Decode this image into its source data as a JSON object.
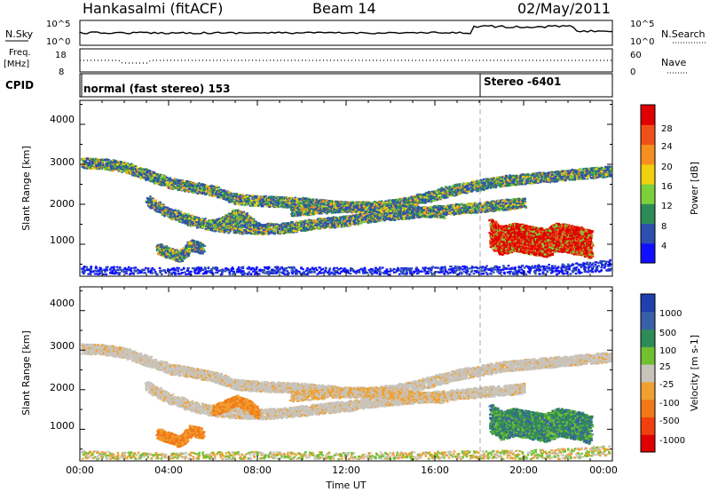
{
  "header": {
    "station": "Hankasalmi (fitACF)",
    "beam": "Beam 14",
    "date": "02/May/2011"
  },
  "sky_panel": {
    "left_label": "N.Sky",
    "right_label": "N.Search",
    "left_ticks": [
      "10^5",
      "10^0"
    ],
    "right_ticks": [
      "10^5",
      "10^0"
    ]
  },
  "freq_panel": {
    "left_label_top": "Freq.",
    "left_label_unit": "[MHz]",
    "right_label": "Nave",
    "left_ticks": [
      "18",
      "8"
    ],
    "right_ticks": [
      "60",
      "0"
    ]
  },
  "cpid_panel": {
    "label": "CPID",
    "mode_1": "normal (fast stereo) 153",
    "mode_2": "Stereo -6401"
  },
  "time_axis": {
    "label": "Time UT",
    "ticks": [
      "00:00",
      "04:00",
      "08:00",
      "12:00",
      "16:00",
      "20:00",
      "00:00"
    ]
  },
  "power_panel": {
    "ylabel": "Slant Range [km]",
    "yticks": [
      "4000",
      "3000",
      "2000",
      "1000"
    ],
    "colorbar_label": "Power [dB]",
    "colorbar_ticks": [
      "28",
      "24",
      "20",
      "16",
      "12",
      "8",
      "4"
    ],
    "colors": [
      "#1010ff",
      "#2d50b0",
      "#2e8b57",
      "#7cd03c",
      "#f0d010",
      "#f59020",
      "#f05018",
      "#e00000"
    ]
  },
  "velocity_panel": {
    "ylabel": "Slant Range [km]",
    "yticks": [
      "4000",
      "3000",
      "2000",
      "1000"
    ],
    "colorbar_label": "Velocity [m s-1]",
    "colorbar_ticks": [
      "1000",
      "500",
      "100",
      "25",
      "-25",
      "-100",
      "-500",
      "-1000"
    ],
    "colors": [
      "#2040b0",
      "#3860a8",
      "#2e8b57",
      "#70c030",
      "#c8c4bc",
      "#f0a030",
      "#f07818",
      "#f04010",
      "#e00000"
    ]
  },
  "chart_data": {
    "type": "heatmap",
    "x_unit": "hours UT",
    "xlim": [
      0,
      24
    ],
    "ylim": [
      200,
      4600
    ],
    "scatter_layers": [
      {
        "name": "upper_layer",
        "points": [
          [
            0,
            3050
          ],
          [
            1,
            3030
          ],
          [
            2,
            2950
          ],
          [
            3,
            2750
          ],
          [
            4,
            2550
          ],
          [
            5,
            2450
          ],
          [
            6,
            2350
          ],
          [
            7,
            2150
          ],
          [
            8,
            2100
          ],
          [
            9,
            2080
          ],
          [
            10,
            2050
          ],
          [
            11,
            2000
          ],
          [
            12,
            1950
          ],
          [
            13,
            1950
          ],
          [
            14,
            2000
          ],
          [
            15,
            2100
          ],
          [
            16,
            2250
          ],
          [
            17,
            2400
          ],
          [
            18,
            2500
          ],
          [
            19,
            2600
          ],
          [
            20,
            2650
          ],
          [
            21,
            2700
          ],
          [
            22,
            2750
          ],
          [
            23,
            2800
          ],
          [
            24,
            2850
          ]
        ]
      },
      {
        "name": "main_arc",
        "points": [
          [
            3,
            2100
          ],
          [
            4,
            1800
          ],
          [
            5,
            1600
          ],
          [
            6,
            1480
          ],
          [
            7,
            1420
          ],
          [
            8,
            1400
          ],
          [
            9,
            1420
          ],
          [
            10,
            1480
          ],
          [
            11,
            1550
          ],
          [
            12,
            1600
          ],
          [
            13,
            1700
          ],
          [
            14,
            1750
          ],
          [
            15,
            1800
          ],
          [
            16,
            1850
          ],
          [
            17,
            1900
          ],
          [
            18,
            1950
          ],
          [
            19,
            2000
          ],
          [
            20,
            2050
          ]
        ]
      },
      {
        "name": "mid_clouds",
        "points": [
          [
            9.5,
            1850
          ],
          [
            10.5,
            1900
          ],
          [
            12,
            1950
          ],
          [
            13.5,
            1950
          ],
          [
            14.5,
            1900
          ],
          [
            15,
            1850
          ],
          [
            16.5,
            1800
          ]
        ]
      },
      {
        "name": "low_patch_1",
        "points": [
          [
            3.5,
            900
          ],
          [
            4,
            800
          ],
          [
            4.5,
            700
          ],
          [
            5,
            1000
          ],
          [
            5.5,
            900
          ]
        ]
      },
      {
        "name": "low_patch_2",
        "points": [
          [
            6,
            1500
          ],
          [
            6.5,
            1600
          ],
          [
            7,
            1750
          ],
          [
            7.5,
            1650
          ],
          [
            8,
            1400
          ]
        ]
      },
      {
        "name": "afternoon",
        "points": [
          [
            18.5,
            1300
          ],
          [
            19,
            1100
          ],
          [
            19.5,
            1200
          ],
          [
            20,
            1150
          ],
          [
            20.5,
            1100
          ],
          [
            21,
            1050
          ],
          [
            21.5,
            1200
          ],
          [
            22,
            1150
          ],
          [
            22.5,
            1100
          ],
          [
            23,
            1000
          ]
        ]
      },
      {
        "name": "ground",
        "points": [
          [
            0,
            350
          ],
          [
            2,
            320
          ],
          [
            4,
            300
          ],
          [
            6,
            320
          ],
          [
            8,
            330
          ],
          [
            10,
            320
          ],
          [
            12,
            300
          ],
          [
            14,
            310
          ],
          [
            16,
            330
          ],
          [
            18,
            350
          ],
          [
            20,
            360
          ],
          [
            22,
            400
          ],
          [
            24,
            500
          ]
        ]
      }
    ],
    "title": ""
  }
}
